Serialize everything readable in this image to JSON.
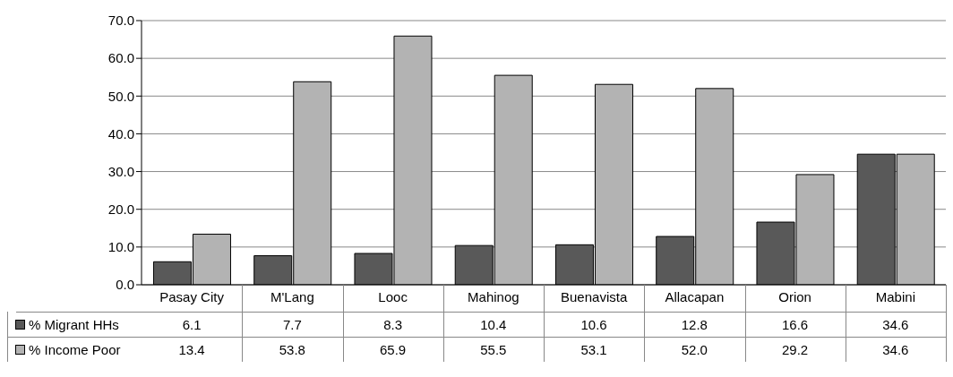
{
  "chart_data": {
    "type": "bar",
    "categories": [
      "Pasay City",
      "M'Lang",
      "Looc",
      "Mahinog",
      "Buenavista",
      "Allacapan",
      "Orion",
      "Mabini"
    ],
    "series": [
      {
        "name": "% Migrant HHs",
        "color": "#595959",
        "values": [
          6.1,
          7.7,
          8.3,
          10.4,
          10.6,
          12.8,
          16.6,
          34.6
        ],
        "value_labels": [
          "6.1",
          "7.7",
          "8.3",
          "10.4",
          "10.6",
          "12.8",
          "16.6",
          "34.6"
        ]
      },
      {
        "name": "% Income Poor",
        "color": "#b3b3b3",
        "values": [
          13.4,
          53.8,
          65.9,
          55.5,
          53.1,
          52.0,
          29.2,
          34.6
        ],
        "value_labels": [
          "13.4",
          "53.8",
          "65.9",
          "55.5",
          "53.1",
          "52.0",
          "29.2",
          "34.6"
        ]
      }
    ],
    "ylim": [
      0,
      70
    ],
    "yticks": [
      {
        "value": 0,
        "label": "0.0"
      },
      {
        "value": 10,
        "label": "10.0"
      },
      {
        "value": 20,
        "label": "20.0"
      },
      {
        "value": 30,
        "label": "30.0"
      },
      {
        "value": 40,
        "label": "40.0"
      },
      {
        "value": 50,
        "label": "50.0"
      },
      {
        "value": 60,
        "label": "60.0"
      },
      {
        "value": 70,
        "label": "70.0"
      }
    ],
    "grid": "y",
    "legend": "bottom left"
  }
}
